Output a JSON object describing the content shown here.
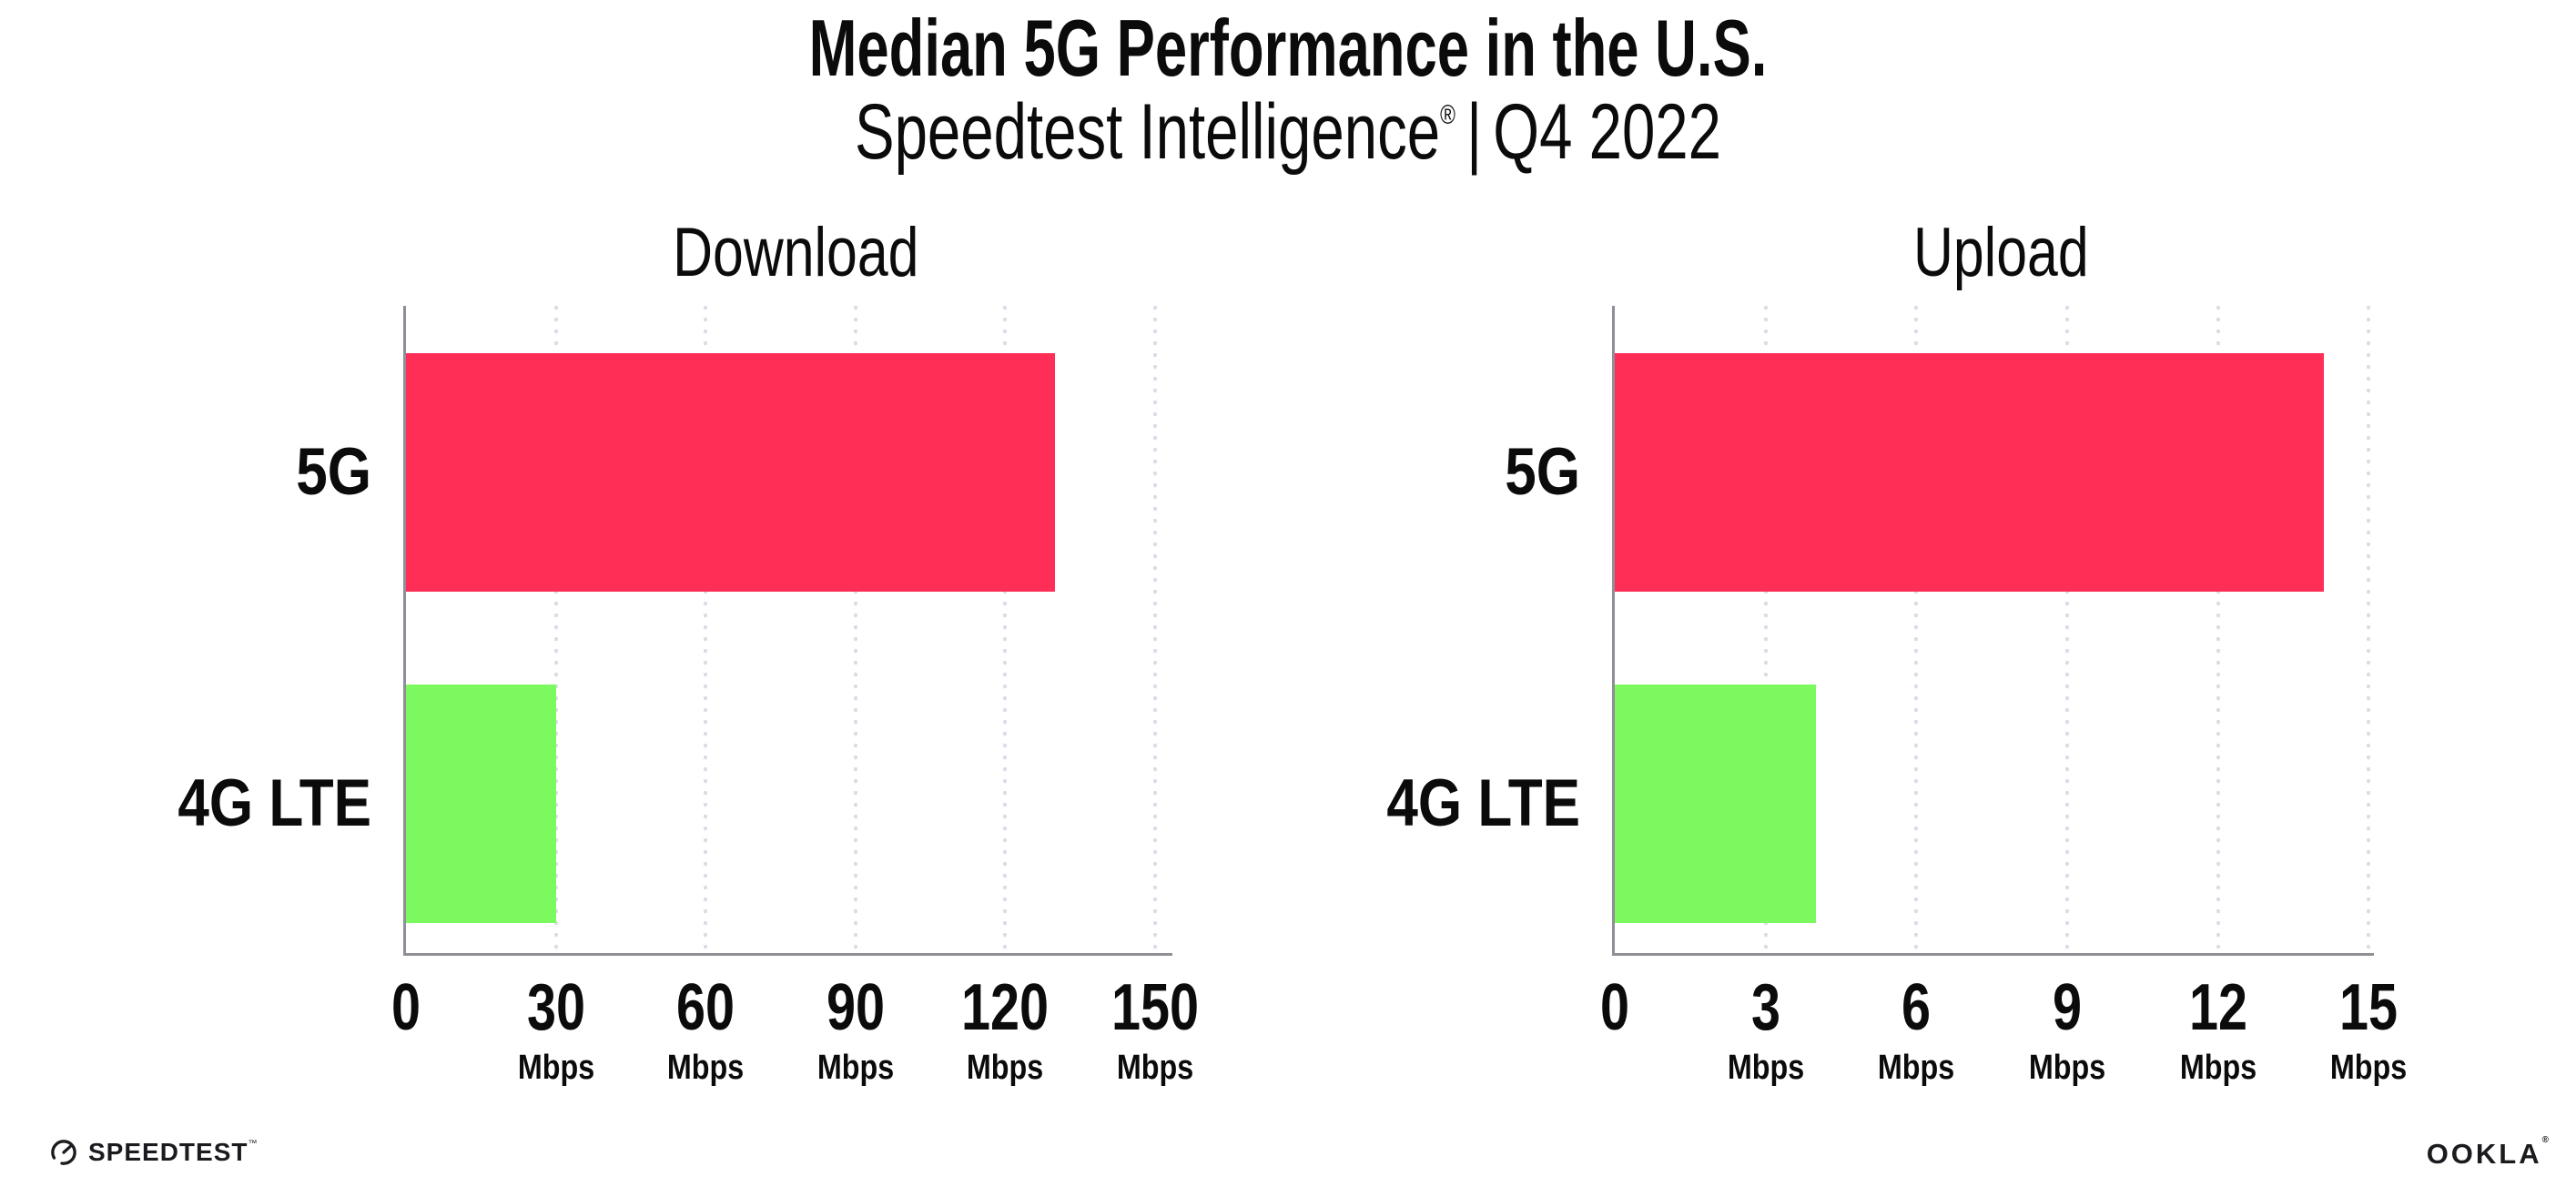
{
  "header": {
    "title": "Median 5G Performance in the U.S.",
    "subtitle_brand": "Speedtest Intelligence",
    "subtitle_registered": "®",
    "subtitle_separator": "|",
    "subtitle_period": "Q4 2022"
  },
  "colors": {
    "bar_5g": "#FE2E56",
    "bar_4g_lte": "#7CF95F",
    "axis": "#8F8F97",
    "gridline": "#DCDCE8",
    "ink": "#0B0B0C",
    "logo_ink": "#1B1B1F",
    "background": "#FFFFFF"
  },
  "chart_data": [
    {
      "type": "bar",
      "orientation": "horizontal",
      "title": "Download",
      "categories": [
        "5G",
        "4G LTE"
      ],
      "values": [
        130,
        30
      ],
      "unit": "Mbps",
      "xlim": [
        0,
        153.5
      ],
      "ticks": [
        0,
        30,
        60,
        90,
        120,
        150
      ],
      "tick_unit_label": "Mbps",
      "grid": "dotted-vertical",
      "legend": "none",
      "bar_colors": [
        "#FE2E56",
        "#7CF95F"
      ]
    },
    {
      "type": "bar",
      "orientation": "horizontal",
      "title": "Upload",
      "categories": [
        "5G",
        "4G LTE"
      ],
      "values": [
        14.1,
        4
      ],
      "unit": "Mbps",
      "xlim": [
        0,
        15.1
      ],
      "ticks": [
        0,
        3,
        6,
        9,
        12,
        15
      ],
      "tick_unit_label": "Mbps",
      "grid": "dotted-vertical",
      "legend": "none",
      "bar_colors": [
        "#FE2E56",
        "#7CF95F"
      ]
    }
  ],
  "footer": {
    "speedtest_label": "SPEEDTEST",
    "speedtest_tm": "™",
    "ookla_label": "OOKLA",
    "ookla_reg": "®"
  }
}
